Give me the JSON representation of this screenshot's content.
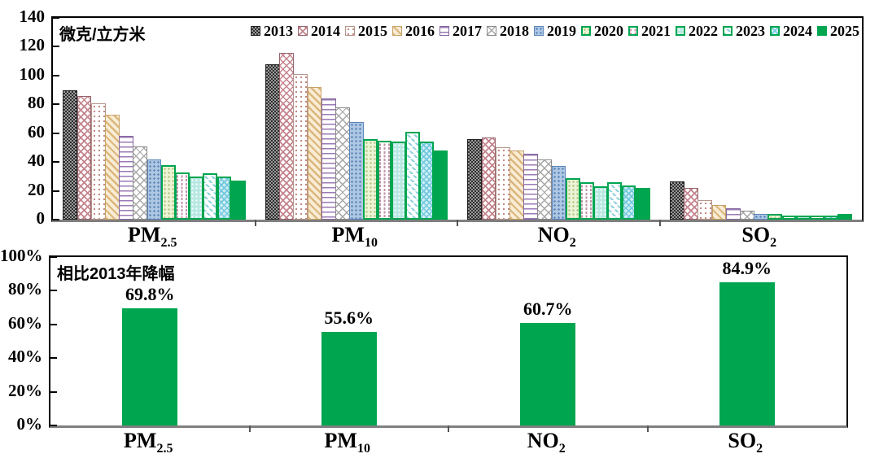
{
  "top_chart": {
    "unit_label": "微克/立方米",
    "y_ticks": [
      "140",
      "120",
      "100",
      "80",
      "60",
      "40",
      "20",
      "0"
    ],
    "legend_years": [
      "2013",
      "2014",
      "2015",
      "2016",
      "2017",
      "2018",
      "2019",
      "2020",
      "2021",
      "2022",
      "2023",
      "2024",
      "2025"
    ],
    "categories": [
      {
        "base": "PM",
        "sub": "2.5"
      },
      {
        "base": "PM",
        "sub": "10"
      },
      {
        "base": "NO",
        "sub": "2"
      },
      {
        "base": "SO",
        "sub": "2"
      }
    ]
  },
  "bottom_chart": {
    "title": "相比2013年降幅",
    "y_ticks": [
      "100%",
      "80%",
      "60%",
      "40%",
      "20%",
      "0%"
    ],
    "value_labels": [
      "69.8%",
      "55.6%",
      "60.7%",
      "84.9%"
    ],
    "categories": [
      {
        "base": "PM",
        "sub": "2.5"
      },
      {
        "base": "PM",
        "sub": "10"
      },
      {
        "base": "NO",
        "sub": "2"
      },
      {
        "base": "SO",
        "sub": "2"
      }
    ]
  },
  "colors": {
    "accent_green": "#00A550",
    "axis_border": "#000000",
    "baseline_gray": "#7F7F7F"
  },
  "chart_data": [
    {
      "type": "bar",
      "title": "微克/立方米",
      "categories": [
        "PM2.5",
        "PM10",
        "NO2",
        "SO2"
      ],
      "series": [
        {
          "name": "2013",
          "values": [
            89.5,
            108,
            56,
            26.5
          ]
        },
        {
          "name": "2014",
          "values": [
            86,
            116,
            57,
            22
          ]
        },
        {
          "name": "2015",
          "values": [
            81,
            101,
            50,
            13.5
          ]
        },
        {
          "name": "2016",
          "values": [
            73,
            92,
            48,
            10
          ]
        },
        {
          "name": "2017",
          "values": [
            58,
            84,
            46,
            8
          ]
        },
        {
          "name": "2018",
          "values": [
            51,
            78,
            42,
            6
          ]
        },
        {
          "name": "2019",
          "values": [
            42,
            68,
            37,
            4
          ]
        },
        {
          "name": "2020",
          "values": [
            38,
            56,
            29,
            4
          ]
        },
        {
          "name": "2021",
          "values": [
            33,
            55,
            26,
            3
          ]
        },
        {
          "name": "2022",
          "values": [
            30,
            54,
            23,
            3
          ]
        },
        {
          "name": "2023",
          "values": [
            32,
            61,
            26,
            3
          ]
        },
        {
          "name": "2024",
          "values": [
            30,
            54,
            24,
            3
          ]
        },
        {
          "name": "2025",
          "values": [
            27,
            48,
            22,
            4
          ]
        }
      ],
      "ylim": [
        0,
        140
      ],
      "y_tick_step": 20,
      "grid": false,
      "legend_position": "top-right"
    },
    {
      "type": "bar",
      "title": "相比2013年降幅",
      "categories": [
        "PM2.5",
        "PM10",
        "NO2",
        "SO2"
      ],
      "values": [
        69.8,
        55.6,
        60.7,
        84.9
      ],
      "data_labels": [
        "69.8%",
        "55.6%",
        "60.7%",
        "84.9%"
      ],
      "ylim": [
        0,
        100
      ],
      "y_tick_step": 20,
      "unit": "%",
      "grid": false
    }
  ]
}
